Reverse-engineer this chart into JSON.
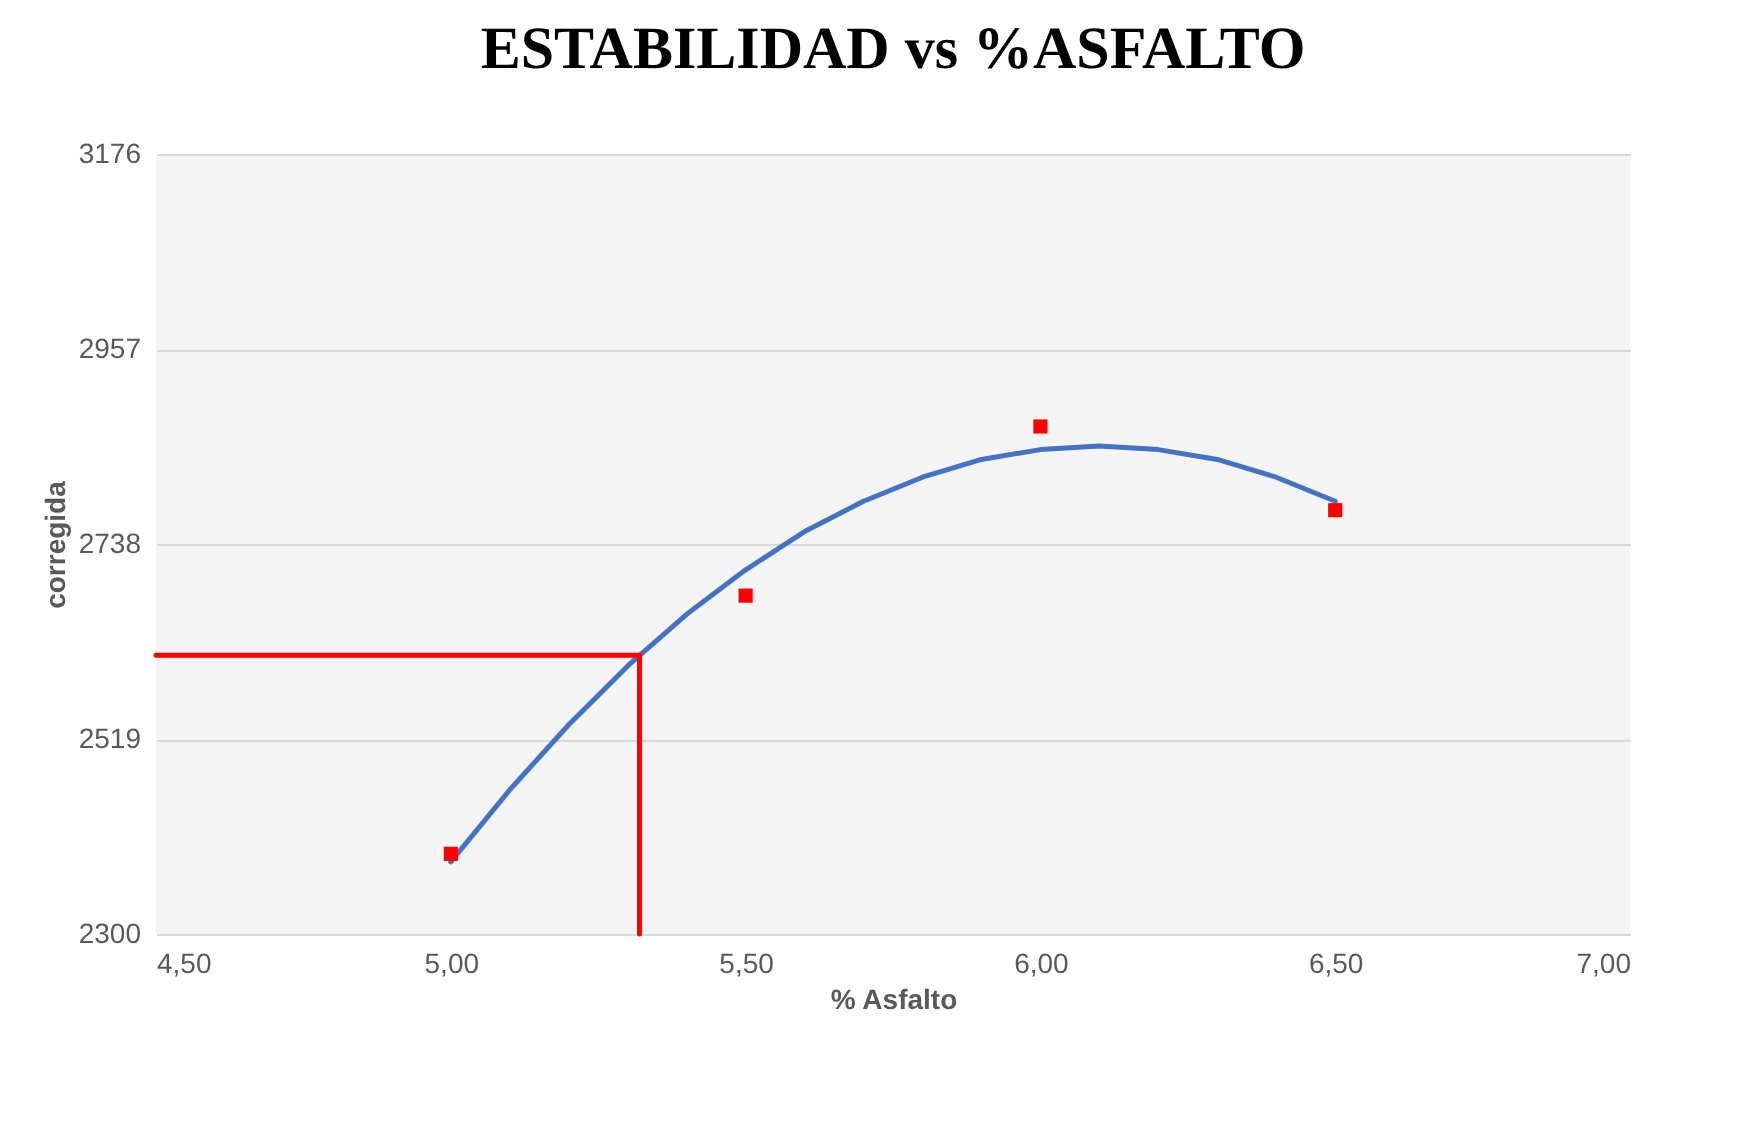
{
  "chart_data": {
    "type": "scatter",
    "title": "ESTABILIDAD vs %ASFALTO",
    "xlabel": "% Asfalto",
    "ylabel": "corregida",
    "xlim": [
      4.5,
      7
    ],
    "xticks": [
      {
        "value": 4.5,
        "label": "4,50"
      },
      {
        "value": 5,
        "label": "5,00"
      },
      {
        "value": 5.5,
        "label": "5,50"
      },
      {
        "value": 6,
        "label": "6,00"
      },
      {
        "value": 6.5,
        "label": "6,50"
      },
      {
        "value": 7,
        "label": "7,00"
      }
    ],
    "ylim": [
      2300,
      3176
    ],
    "yticks": [
      2300,
      2519,
      2738,
      2957,
      3176
    ],
    "grid": "y",
    "series": [
      {
        "type": "line",
        "color": "#4472c4",
        "marker": "none",
        "x": [
          5.0,
          5.1,
          5.2,
          5.3,
          5.4,
          5.5,
          5.6,
          5.7,
          5.8,
          5.9,
          6.0,
          6.1,
          6.2,
          6.3,
          6.4,
          6.5
        ],
        "values": [
          2381,
          2462,
          2535,
          2601,
          2659,
          2709,
          2752,
          2786,
          2813,
          2833,
          2844,
          2848,
          2844,
          2833,
          2813,
          2786
        ]
      },
      {
        "type": "line",
        "color": "#ff0000",
        "marker": "none",
        "x": [
          5.32,
          5.32,
          4.5
        ],
        "values": [
          2300,
          2613,
          2613
        ]
      },
      {
        "color": "#ff0000",
        "marker": "square",
        "x": [
          5.0,
          5.5,
          6.0,
          6.5
        ],
        "values": [
          2390,
          2680,
          2870,
          2776
        ]
      }
    ]
  }
}
